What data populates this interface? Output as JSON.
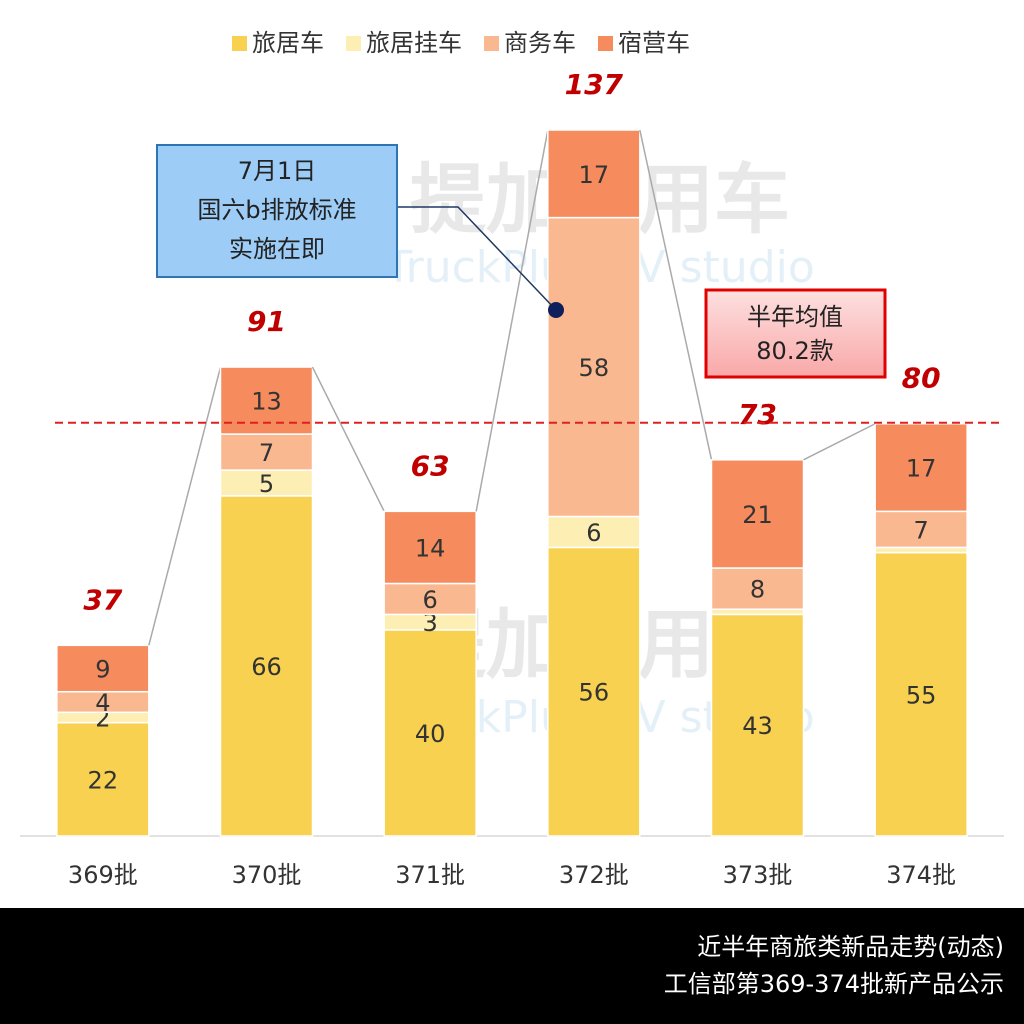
{
  "chart_data": {
    "type": "stacked_bar",
    "categories": [
      "369批",
      "370批",
      "371批",
      "372批",
      "373批",
      "374批"
    ],
    "series": [
      {
        "name": "旅居车",
        "color": "#f9d150",
        "values": [
          22,
          66,
          40,
          56,
          43,
          55
        ]
      },
      {
        "name": "旅居挂车",
        "color": "#fdeeb3",
        "values": [
          2,
          5,
          3,
          6,
          1,
          1
        ],
        "value_labels": [
          "2",
          "5",
          "3",
          "6",
          null,
          null
        ]
      },
      {
        "name": "商务车",
        "color": "#f9b88f",
        "values": [
          4,
          7,
          6,
          58,
          8,
          7
        ]
      },
      {
        "name": "宿营车",
        "color": "#f68b5e",
        "values": [
          9,
          13,
          14,
          17,
          21,
          17
        ]
      }
    ],
    "totals": [
      37,
      91,
      63,
      137,
      73,
      80
    ],
    "ylim": [
      0,
      137
    ],
    "average": 80.2,
    "average_annotation": [
      "半年均值",
      "80.2款"
    ],
    "callout": [
      "7月1日",
      "国六b排放标准",
      "实施在即"
    ],
    "watermark": [
      "提加商用车",
      "TruckPlus CV studio"
    ],
    "footer": [
      "近半年商旅类新品走势(动态)",
      "工信部第369-374批新产品公示"
    ]
  }
}
